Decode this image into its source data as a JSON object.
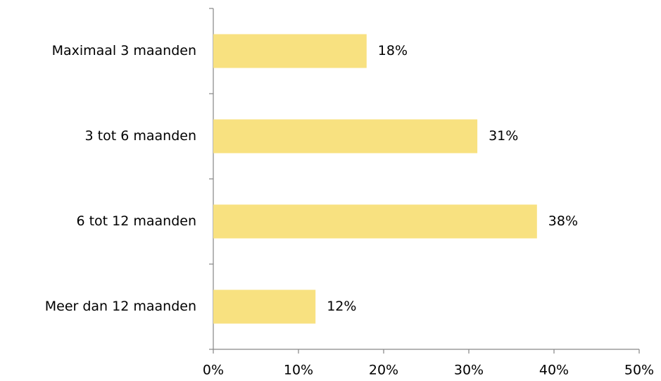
{
  "chart_data": {
    "type": "hbar",
    "categories": [
      "Maximaal 3 maanden",
      "3 tot 6 maanden",
      "6 tot 12 maanden",
      "Meer dan 12 maanden"
    ],
    "values": [
      18,
      31,
      38,
      12
    ],
    "value_labels": [
      "18%",
      "31%",
      "38%",
      "12%"
    ],
    "color": "#f8e180",
    "xlim": [
      0,
      50
    ],
    "xticks": [
      {
        "value": 0,
        "label": "0%"
      },
      {
        "value": 10,
        "label": "10%"
      },
      {
        "value": 20,
        "label": "20%"
      },
      {
        "value": 30,
        "label": "30%"
      },
      {
        "value": 40,
        "label": "40%"
      },
      {
        "value": 50,
        "label": "50%"
      }
    ],
    "grid": false
  }
}
